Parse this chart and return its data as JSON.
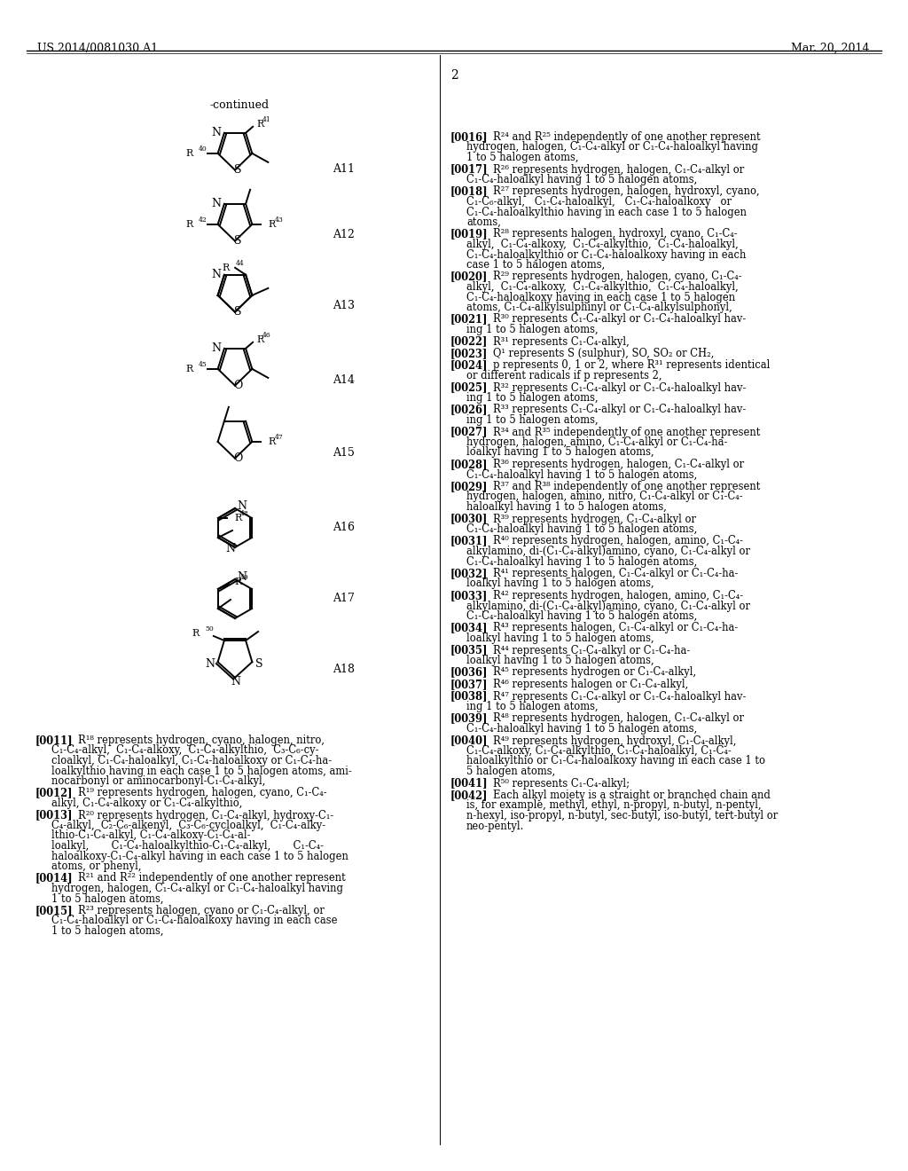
{
  "header_left": "US 2014/0081030 A1",
  "header_right": "Mar. 20, 2014",
  "page_number": "2",
  "background_color": "#ffffff",
  "text_color": "#000000"
}
